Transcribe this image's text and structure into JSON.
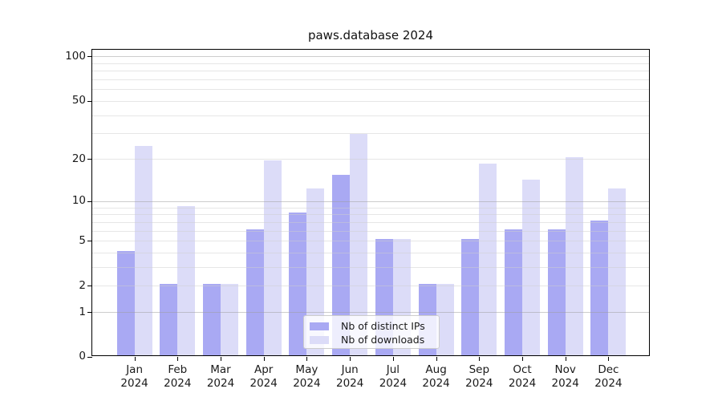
{
  "chart_data": {
    "type": "bar",
    "title": "paws.database 2024",
    "categories": [
      "Jan",
      "Feb",
      "Mar",
      "Apr",
      "May",
      "Jun",
      "Jul",
      "Aug",
      "Sep",
      "Oct",
      "Nov",
      "Dec"
    ],
    "year": "2024",
    "series": [
      {
        "name": "Nb of distinct IPs",
        "color": "#a9a9f3",
        "values": [
          4,
          2,
          2,
          6,
          8,
          15,
          5,
          2,
          5,
          6,
          6,
          7
        ]
      },
      {
        "name": "Nb of downloads",
        "color": "#dcdcf8",
        "values": [
          24,
          9,
          2,
          19,
          12,
          29,
          5,
          2,
          18,
          14,
          20,
          12
        ]
      }
    ],
    "yscale": "log1p",
    "ylim": [
      0,
      115
    ],
    "yticks": [
      0,
      1,
      2,
      5,
      10,
      20,
      50,
      100
    ],
    "major_gridlines": [
      1,
      10,
      100
    ],
    "minor_gridlines": [
      2,
      3,
      4,
      5,
      6,
      7,
      8,
      9,
      20,
      30,
      40,
      50,
      60,
      70,
      80,
      90
    ],
    "grid": true,
    "legend_position": "lower center",
    "xlabel": "",
    "ylabel": ""
  }
}
